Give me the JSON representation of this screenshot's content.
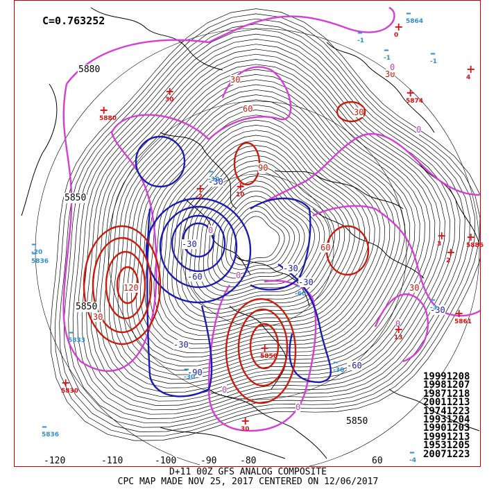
{
  "correlation_label": "C=0.763252",
  "header_contours": [
    "5880",
    "5850",
    "5850",
    "5850"
  ],
  "longitude_labels": [
    "-120",
    "-110",
    "-100",
    "-90",
    "-80",
    "60"
  ],
  "anomaly_labels": [
    "30",
    "60",
    "90",
    "-30",
    "-60",
    "-90",
    "0",
    "120",
    "60",
    "-30",
    "30",
    "0",
    "0",
    "0",
    "30",
    "-60",
    "0",
    "-30",
    "-30",
    "0",
    "30",
    "30",
    "-30",
    "0",
    "-30"
  ],
  "stations": [
    {
      "sign": "+",
      "value": "5880"
    },
    {
      "sign": "+",
      "value": "30"
    },
    {
      "sign": "+",
      "value": "-2"
    },
    {
      "sign": "+",
      "value": "10"
    },
    {
      "sign": "+",
      "value": "5850"
    },
    {
      "sign": "+",
      "value": "5830"
    },
    {
      "sign": "+",
      "value": "0"
    },
    {
      "sign": "+",
      "value": "5874"
    },
    {
      "sign": "+",
      "value": "4"
    },
    {
      "sign": "+",
      "value": "3"
    },
    {
      "sign": "+",
      "value": "2"
    },
    {
      "sign": "+",
      "value": "5886"
    },
    {
      "sign": "+",
      "value": "13"
    },
    {
      "sign": "+",
      "value": "5861"
    },
    {
      "sign": "+",
      "value": "30"
    },
    {
      "sign": "-",
      "value": "5864"
    },
    {
      "sign": "-",
      "value": "-1"
    },
    {
      "sign": "-",
      "value": "-1"
    },
    {
      "sign": "-",
      "value": "-1"
    },
    {
      "sign": "-",
      "value": "-20"
    },
    {
      "sign": "-",
      "value": "5836"
    },
    {
      "sign": "-",
      "value": "5833"
    },
    {
      "sign": "-",
      "value": "-30"
    },
    {
      "sign": "-",
      "value": "5836"
    },
    {
      "sign": "-",
      "value": "-30"
    },
    {
      "sign": "-",
      "value": "-30"
    },
    {
      "sign": "-",
      "value": "-4"
    },
    {
      "sign": "-",
      "value": "-3"
    },
    {
      "sign": "-",
      "value": "-60"
    }
  ],
  "analog_dates": [
    "19991208",
    "19981207",
    "19871218",
    "20011213",
    "19741223",
    "19931204",
    "19901203",
    "19991213",
    "19531205",
    "20071223"
  ],
  "footer": {
    "line1": "D+11 00Z GFS ANALOG COMPOSITE",
    "line2": "CPC MAP MADE NOV 25, 2017 CENTERED ON 12/06/2017"
  },
  "colors": {
    "height_contours": "#000000",
    "positive_anomaly": "#cc1a0a",
    "negative_anomaly": "#1a1ab4",
    "zero_line": "#d63cd6",
    "positive_station": "#e01010",
    "negative_station": "#2f8fd8",
    "frame": "#c00000"
  }
}
